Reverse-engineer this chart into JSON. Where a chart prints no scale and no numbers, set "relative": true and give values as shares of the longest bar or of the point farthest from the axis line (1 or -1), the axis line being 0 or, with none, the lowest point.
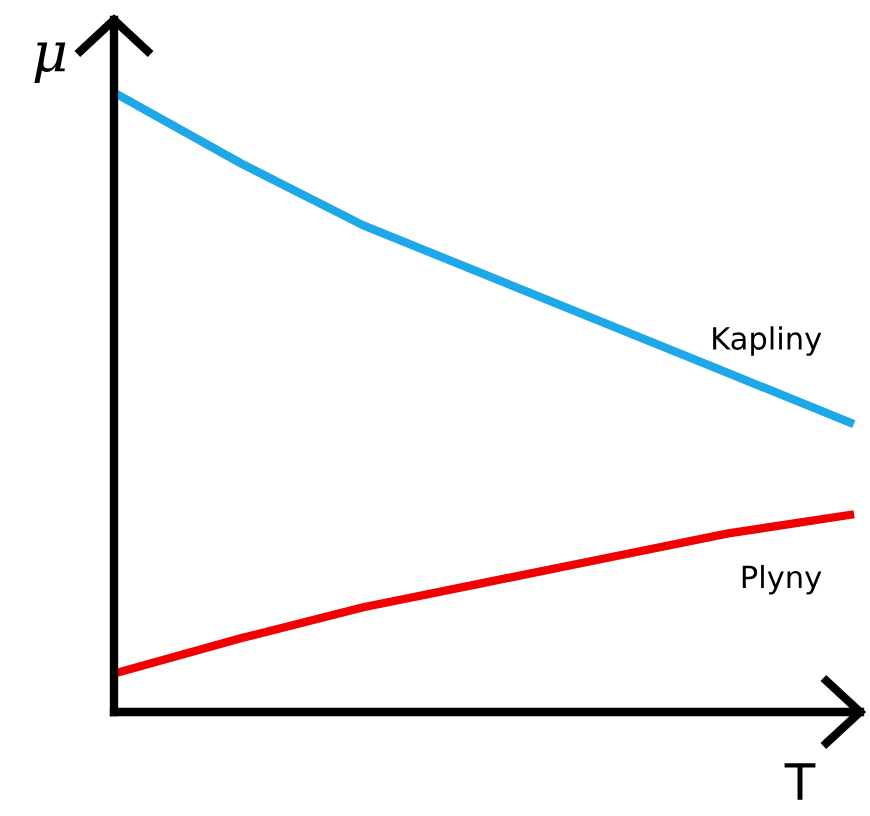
{
  "chart_data": {
    "type": "line",
    "relative": true,
    "xlabel": "T",
    "ylabel": "μ",
    "legend": false,
    "marker": "none",
    "line_style": "solid",
    "categories": [
      null,
      null,
      null,
      null,
      null,
      null,
      null
    ],
    "series": [
      {
        "name": "Kapliny",
        "color": "#1ea8e8",
        "values": [
          1,
          0.89,
          0.79,
          0.71,
          0.63,
          0.55,
          0.47
        ]
      },
      {
        "name": "Plyny",
        "color": "#f00000",
        "values": [
          0.065,
          0.12,
          0.17,
          0.21,
          0.25,
          0.29,
          0.32
        ]
      }
    ]
  }
}
